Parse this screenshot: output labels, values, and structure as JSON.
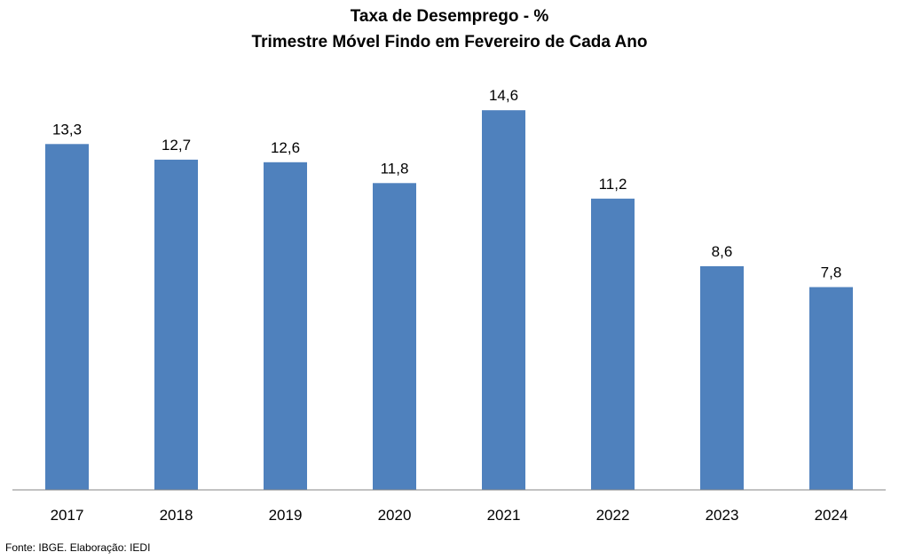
{
  "chart_data": {
    "type": "bar",
    "title": "Taxa de Desemprego - %",
    "subtitle": "Trimestre Móvel Findo em Fevereiro de Cada Ano",
    "categories": [
      "2017",
      "2018",
      "2019",
      "2020",
      "2021",
      "2022",
      "2023",
      "2024"
    ],
    "values": [
      13.3,
      12.7,
      12.6,
      11.8,
      14.6,
      11.2,
      8.6,
      7.8
    ],
    "data_labels": [
      "13,3",
      "12,7",
      "12,6",
      "11,8",
      "14,6",
      "11,2",
      "8,6",
      "7,8"
    ],
    "xlabel": "",
    "ylabel": "",
    "ylim": [
      0,
      15
    ],
    "grid": false,
    "legend": "none",
    "bar_color": "#4F81BD"
  },
  "source": "Fonte: IBGE. Elaboração: IEDI"
}
